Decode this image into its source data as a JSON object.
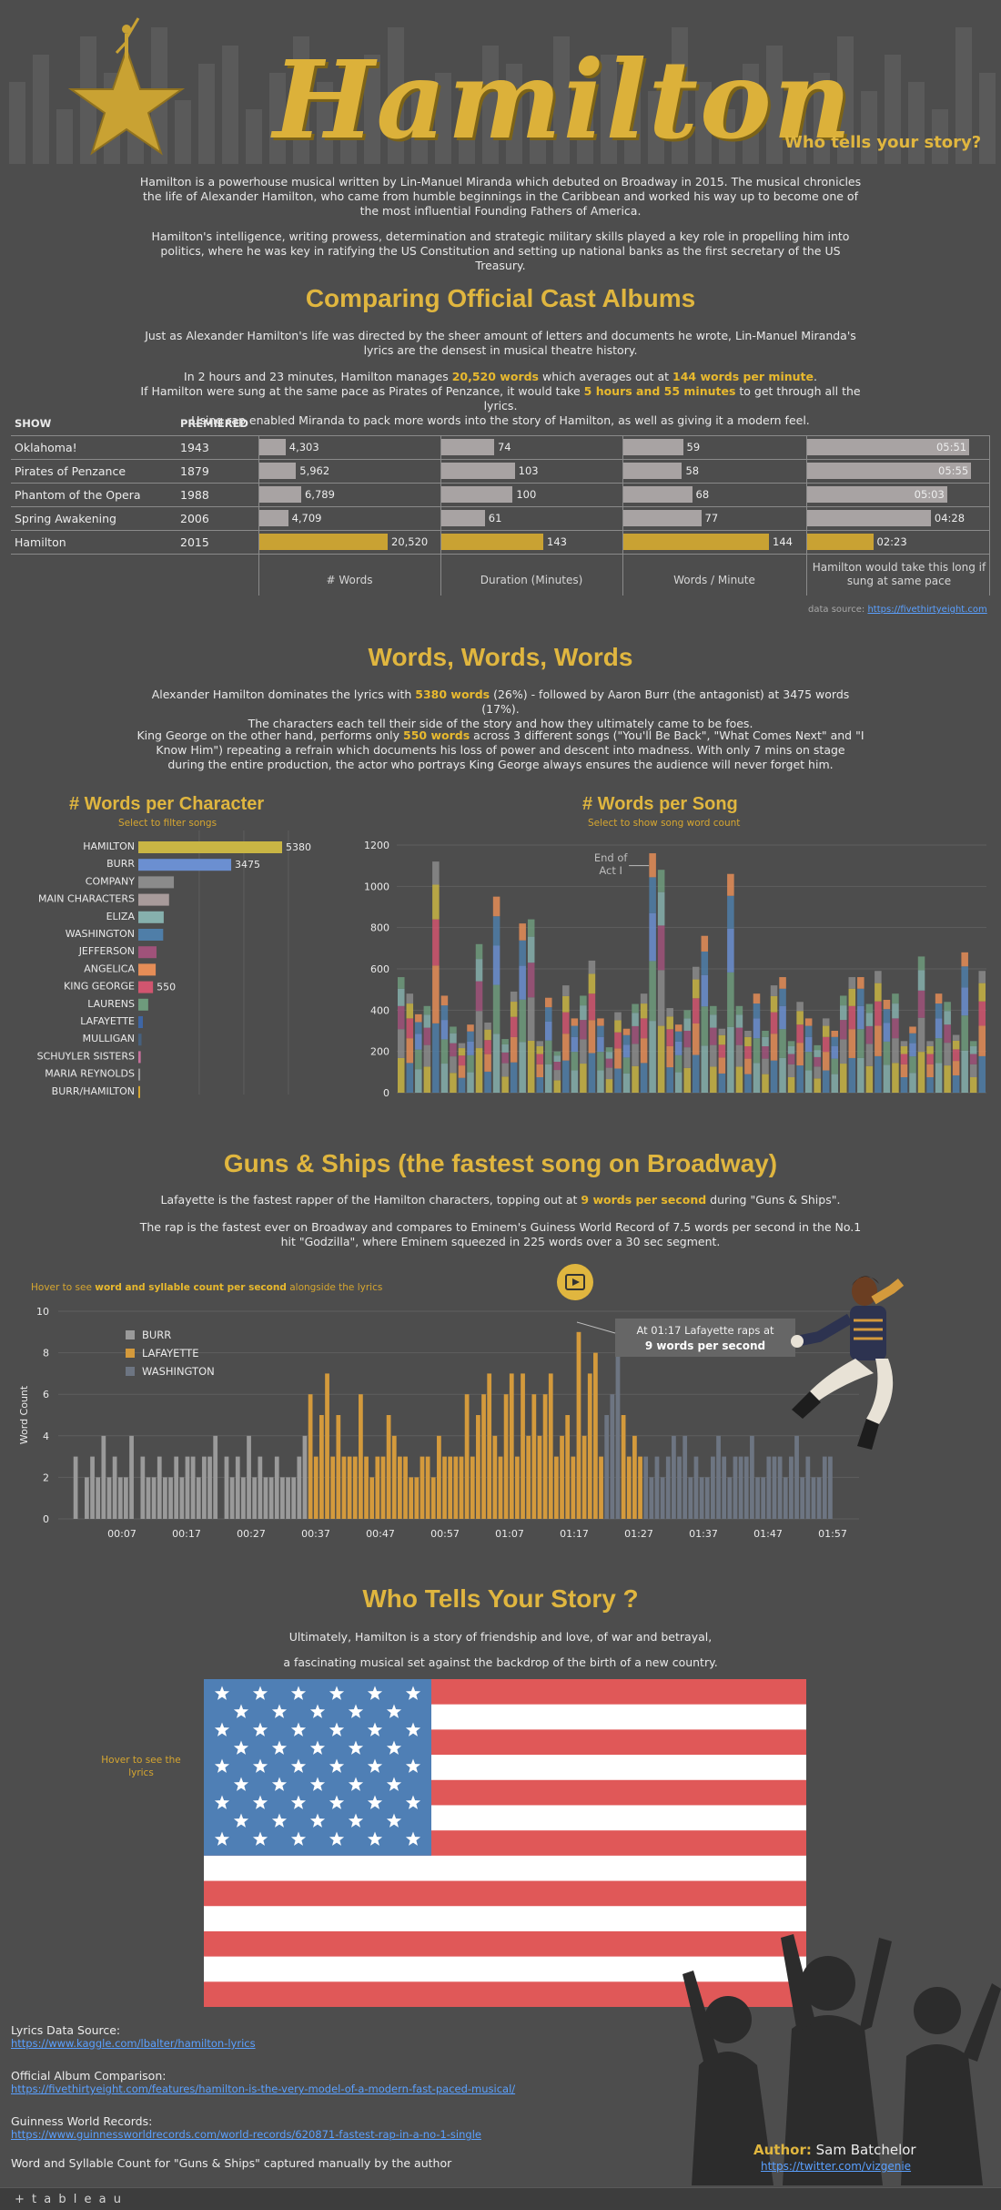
{
  "hero": {
    "title": "Hamilton",
    "tagline": "Who tells your story?",
    "intro_1": "Hamilton is a powerhouse musical written by Lin-Manuel Miranda which debuted on Broadway in 2015. The musical chronicles the life of Alexander Hamilton, who came from humble beginnings in the Caribbean and worked his way up to become one of the most influential Founding Fathers of America.",
    "intro_2": "Hamilton's intelligence, writing prowess, determination and strategic military skills played a key role in propelling him into politics, where he was key in ratifying the US Constitution and setting up national banks as the first secretary of the US Treasury."
  },
  "albums": {
    "heading": "Comparing Official Cast Albums",
    "p1": "Just as Alexander Hamilton's life was directed by the sheer amount of letters and documents he wrote, Lin-Manuel Miranda's lyrics are the densest in musical theatre history.",
    "p2_a": "In 2 hours and 23 minutes, Hamilton manages ",
    "p2_b": "20,520 words",
    "p2_c": " which averages out at ",
    "p2_d": "144 words per minute",
    "p2_e": ".",
    "p3_a": "If Hamilton were sung at the same pace as Pirates of Penzance, it would take ",
    "p3_b": "5 hours and 55 minutes",
    "p3_c": " to get through all the lyrics.",
    "p4": "Using rap enabled Miranda to pack more words into the story of Hamilton, as well as giving it a modern feel.",
    "col_show": "SHOW",
    "col_premiered": "PREMIERED",
    "foot_words": "# Words",
    "foot_duration": "Duration (Minutes)",
    "foot_wpm": "Words / Minute",
    "foot_pace": "Hamilton would take this long if sung at same pace",
    "source_label": "data source:",
    "source_link": "https://fivethirtyeight.com",
    "rows": [
      {
        "show": "Oklahoma!",
        "premiered": "1943",
        "words": 4303,
        "words_label": "4,303",
        "duration": 74,
        "wpm": 59,
        "pace": "05:51",
        "pace_min": 351
      },
      {
        "show": "Pirates of Penzance",
        "premiered": "1879",
        "words": 5962,
        "words_label": "5,962",
        "duration": 103,
        "wpm": 58,
        "pace": "05:55",
        "pace_min": 355
      },
      {
        "show": "Phantom of the Opera",
        "premiered": "1988",
        "words": 6789,
        "words_label": "6,789",
        "duration": 100,
        "wpm": 68,
        "pace": "05:03",
        "pace_min": 303
      },
      {
        "show": "Spring Awakening",
        "premiered": "2006",
        "words": 4709,
        "words_label": "4,709",
        "duration": 61,
        "wpm": 77,
        "pace": "04:28",
        "pace_min": 268
      },
      {
        "show": "Hamilton",
        "premiered": "2015",
        "words": 20520,
        "words_label": "20,520",
        "duration": 143,
        "wpm": 144,
        "pace": "02:23",
        "pace_min": 143
      }
    ]
  },
  "words": {
    "heading": "Words, Words, Words",
    "p1_a": "Alexander Hamilton dominates the lyrics with ",
    "p1_b": "5380 words",
    "p1_c": " (26%) - followed by Aaron Burr (the antagonist) at 3475 words (17%).",
    "p1_d": "The characters each tell their side of the story and how they ultimately came to be foes.",
    "p2_a": "King George on the other hand, performs only ",
    "p2_b": "550 words",
    "p2_c": " across 3 different songs (\"You'll Be Back\", \"What Comes Next\" and \"I Know Him\") repeating a refrain which documents his loss of power and descent into madness. With only 7 mins on stage during the entire production, the actor who portrays King George always ensures the audience will never forget him.",
    "char_title": "# Words per Character",
    "char_note": "Select to filter songs",
    "song_title": "# Words per Song",
    "song_note": "Select to show song word count",
    "end_act": "End of\nAct I"
  },
  "chart_data": [
    {
      "type": "bar",
      "title": "# Words per Character",
      "categories": [
        "HAMILTON",
        "BURR",
        "COMPANY",
        "MAIN CHARACTERS",
        "ELIZA",
        "WASHINGTON",
        "JEFFERSON",
        "ANGELICA",
        "KING GEORGE",
        "LAURENS",
        "LAFAYETTE",
        "MULLIGAN",
        "SCHUYLER SISTERS",
        "MARIA REYNOLDS",
        "BURR/HAMILTON"
      ],
      "values": [
        5380,
        3475,
        1330,
        1150,
        950,
        930,
        680,
        650,
        550,
        370,
        170,
        120,
        90,
        70,
        40
      ],
      "labels": {
        "HAMILTON": "5380",
        "BURR": "3475",
        "KING GEORGE": "550"
      },
      "colors": [
        "#c9b544",
        "#6b8fd1",
        "#8b8b8b",
        "#a89b9b",
        "#86b0ad",
        "#4f7ea8",
        "#a0527a",
        "#e58d57",
        "#d1556f",
        "#6e9b7c",
        "#3e66a5",
        "#46617f",
        "#c7709c",
        "#9a9a9a",
        "#d6a630"
      ]
    },
    {
      "type": "bar",
      "title": "# Words per Song",
      "ylim": [
        0,
        1200
      ],
      "yticks": [
        0,
        200,
        400,
        600,
        800,
        1000,
        1200
      ],
      "values": [
        560,
        480,
        380,
        420,
        1120,
        470,
        320,
        240,
        330,
        720,
        340,
        950,
        260,
        490,
        820,
        840,
        250,
        460,
        200,
        520,
        360,
        470,
        640,
        360,
        220,
        390,
        310,
        430,
        480,
        1160,
        1080,
        410,
        330,
        400,
        610,
        760,
        420,
        310,
        1060,
        420,
        300,
        480,
        300,
        520,
        560,
        250,
        440,
        360,
        230,
        360,
        300,
        470,
        560,
        560,
        430,
        590,
        450,
        480,
        250,
        320,
        660,
        250,
        480,
        440,
        280,
        680,
        250,
        590
      ]
    },
    {
      "type": "bar",
      "title": "Guns & Ships",
      "ylabel": "Word Count",
      "ylim": [
        0,
        10
      ],
      "yticks": [
        0,
        2,
        4,
        6,
        8,
        10
      ],
      "xticks": [
        "00:07",
        "00:17",
        "00:27",
        "00:37",
        "00:47",
        "00:57",
        "01:07",
        "01:17",
        "01:27",
        "01:37",
        "01:47",
        "01:57"
      ],
      "series": [
        {
          "name": "BURR",
          "color": "#9a9a9a"
        },
        {
          "name": "LAFAYETTE",
          "color": "#d49a3c"
        },
        {
          "name": "WASHINGTON",
          "color": "#6d7582"
        }
      ],
      "values": [
        0,
        3,
        0,
        2,
        3,
        2,
        4,
        2,
        3,
        2,
        2,
        4,
        0,
        3,
        2,
        2,
        3,
        2,
        2,
        3,
        2,
        3,
        3,
        2,
        3,
        3,
        4,
        0,
        3,
        2,
        3,
        2,
        4,
        2,
        3,
        2,
        2,
        3,
        2,
        2,
        2,
        3,
        4,
        6,
        3,
        5,
        7,
        3,
        5,
        3,
        3,
        3,
        6,
        3,
        2,
        3,
        3,
        5,
        4,
        3,
        3,
        2,
        2,
        3,
        3,
        2,
        4,
        3,
        3,
        3,
        3,
        6,
        3,
        5,
        6,
        7,
        4,
        3,
        6,
        7,
        3,
        7,
        4,
        6,
        4,
        6,
        7,
        3,
        4,
        5,
        3,
        9,
        4,
        7,
        8,
        3,
        5,
        6,
        9,
        5,
        3,
        4,
        3,
        3,
        2,
        3,
        2,
        3,
        4,
        3,
        4,
        2,
        3,
        2,
        2,
        3,
        4,
        3,
        2,
        3,
        3,
        3,
        4,
        2,
        2,
        3,
        3,
        3,
        2,
        3,
        4,
        2,
        3,
        2,
        2,
        3,
        3,
        0,
        0,
        0
      ],
      "speaker": [
        "B",
        "B",
        "B",
        "B",
        "B",
        "B",
        "B",
        "B",
        "B",
        "B",
        "B",
        "B",
        "B",
        "B",
        "B",
        "B",
        "B",
        "B",
        "B",
        "B",
        "B",
        "B",
        "B",
        "B",
        "B",
        "B",
        "B",
        "B",
        "B",
        "B",
        "B",
        "B",
        "B",
        "B",
        "B",
        "B",
        "B",
        "B",
        "B",
        "B",
        "B",
        "B",
        "B",
        "L",
        "L",
        "L",
        "L",
        "L",
        "L",
        "L",
        "L",
        "L",
        "L",
        "L",
        "L",
        "L",
        "L",
        "L",
        "L",
        "L",
        "L",
        "L",
        "L",
        "L",
        "L",
        "L",
        "L",
        "L",
        "L",
        "L",
        "L",
        "L",
        "L",
        "L",
        "L",
        "L",
        "L",
        "L",
        "L",
        "L",
        "L",
        "L",
        "L",
        "L",
        "L",
        "L",
        "L",
        "L",
        "L",
        "L",
        "L",
        "L",
        "L",
        "L",
        "L",
        "L",
        "W",
        "W",
        "W",
        "L",
        "L",
        "L",
        "L",
        "W",
        "W",
        "W",
        "W",
        "W",
        "W",
        "W",
        "W",
        "W",
        "W",
        "W",
        "W",
        "W",
        "W",
        "W",
        "W",
        "W",
        "W",
        "W",
        "W",
        "W",
        "W",
        "W",
        "W",
        "W",
        "W",
        "W",
        "W",
        "W",
        "W",
        "W",
        "W",
        "W",
        "W"
      ]
    }
  ],
  "guns": {
    "heading": "Guns & Ships (the fastest song on Broadway)",
    "p1_a": "Lafayette is the fastest rapper of the Hamilton characters, topping out at ",
    "p1_b": "9 words per second",
    "p1_c": " during \"Guns & Ships\".",
    "p2": "The rap is the fastest ever on Broadway and compares to Eminem's Guiness World Record of 7.5 words per second in the No.1 hit \"Godzilla\", where Eminem squeezed in 225 words over a 30 sec segment.",
    "hover_a": "Hover to see ",
    "hover_b": "word and syllable count per second",
    "hover_c": " alongside the lyrics",
    "callout_a": "At 01:17 Lafayette raps at",
    "callout_b": "9 words per second"
  },
  "story": {
    "heading": "Who Tells Your Story ?",
    "p1": "Ultimately, Hamilton is a story of friendship and love, of war and betrayal,",
    "p2": "a fascinating musical set against the backdrop of the birth of a new country.",
    "hover": "Hover to see the lyrics"
  },
  "sources": {
    "lyrics_title": "Lyrics Data Source:",
    "lyrics_link": "https://www.kaggle.com/lbalter/hamilton-lyrics",
    "album_title": "Official Album Comparison:",
    "album_link": "https://fivethirtyeight.com/features/hamilton-is-the-very-model-of-a-modern-fast-paced-musical/",
    "guinness_title": "Guinness World Records:",
    "guinness_link": "https://www.guinnessworldrecords.com/world-records/620871-fastest-rap-in-a-no-1-single",
    "manual_note": "Word and Syllable Count for \"Guns & Ships\" captured manually by the author",
    "author_label": "Author:",
    "author_name": "Sam Batchelor",
    "author_link": "https://twitter.com/vizgenie"
  },
  "footer": {
    "logo": "+ t a b l e a u"
  }
}
